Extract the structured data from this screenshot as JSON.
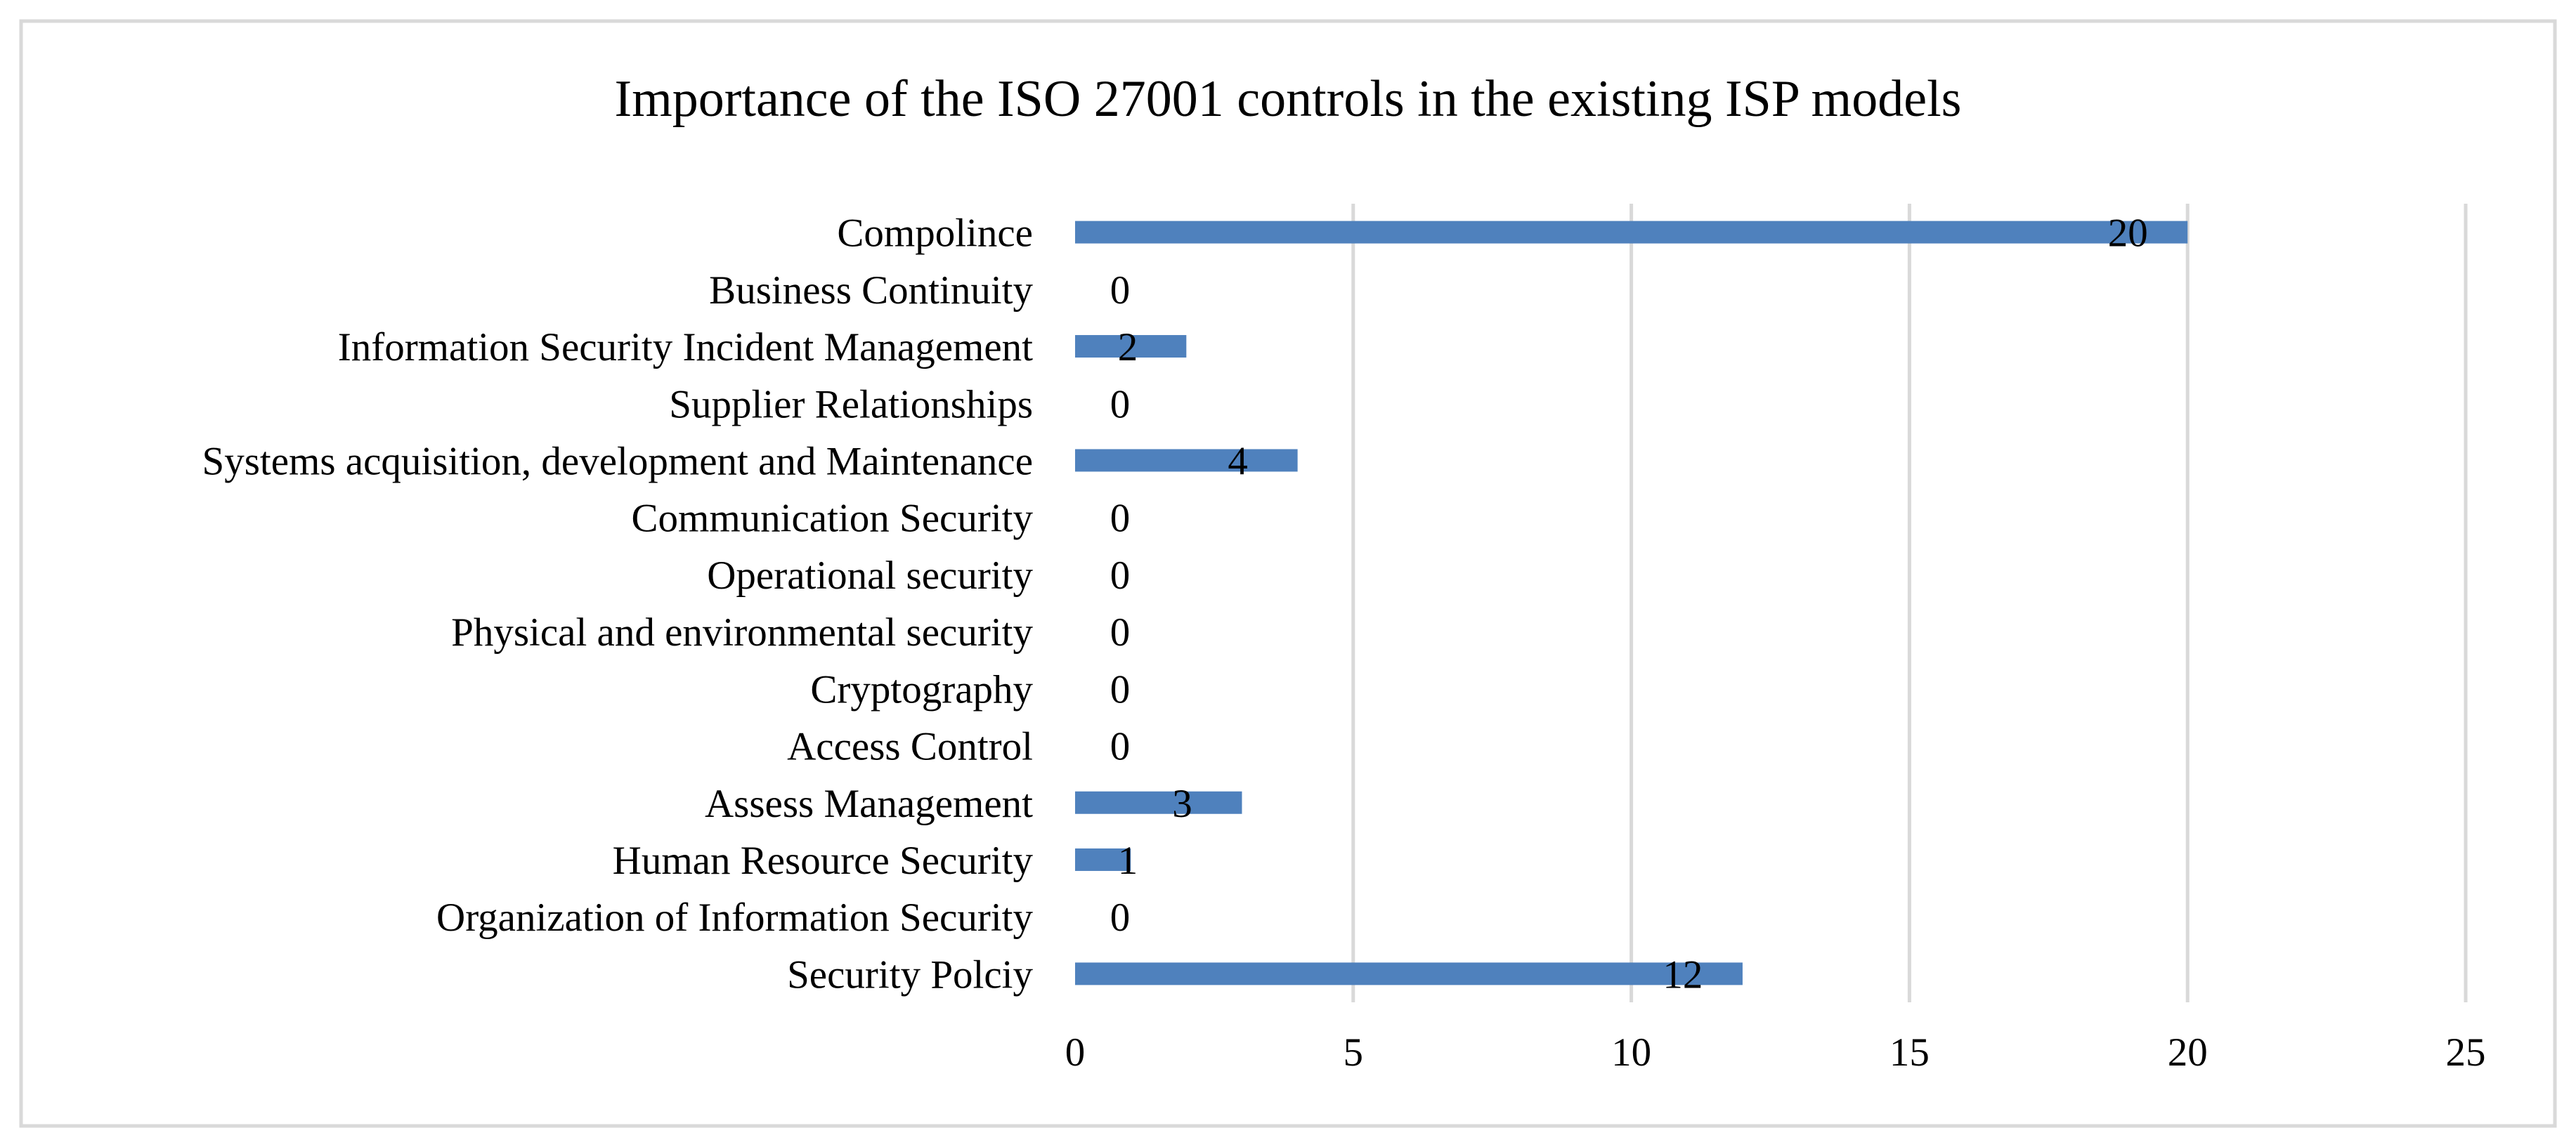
{
  "chart_data": {
    "type": "bar",
    "orientation": "horizontal",
    "title": "Importance of the ISO 27001 controls in the existing ISP models",
    "xlabel": "",
    "ylabel": "",
    "xlim": [
      0,
      25
    ],
    "xticks": [
      "0",
      "5",
      "10",
      "15",
      "20",
      "25"
    ],
    "grid": true,
    "legend": "none",
    "categories": [
      "Security Polciy",
      "Organization of Information Security",
      "Human Resource Security",
      "Assess Management",
      "Access Control",
      "Cryptography",
      "Physical and environmental security",
      "Operational security",
      "Communication Security",
      "Systems acquisition, development and Maintenance",
      "Supplier Relationships",
      "Information Security Incident Management",
      "Business Continuity",
      "Compolince"
    ],
    "values": [
      12,
      0,
      1,
      3,
      0,
      0,
      0,
      0,
      0,
      4,
      0,
      2,
      0,
      20
    ],
    "bar_color": "#4f81bd",
    "grid_color": "#d9d9d9",
    "border_color": "#d9d9d9"
  }
}
